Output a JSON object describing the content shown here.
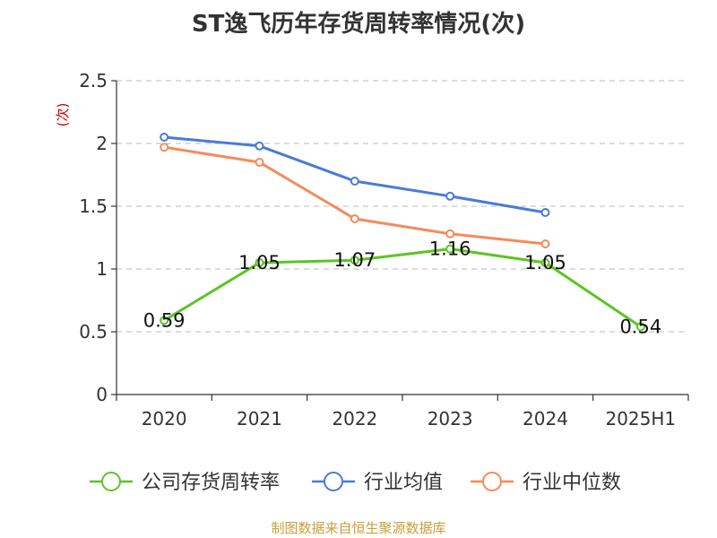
{
  "title": "ST逸飞历年存货周转率情况(次)",
  "source": "制图数据来自恒生聚源数据库",
  "colors": {
    "company": "#5cc424",
    "industry_avg": "#4a7bd6",
    "industry_median": "#f58a5a",
    "grid": "#c8c8c8",
    "axis": "#333333",
    "unit": "#cc0000",
    "source": "#c8a03c"
  },
  "chart_data": {
    "type": "line",
    "title": "ST逸飞历年存货周转率情况(次)",
    "ylabel": "(次)",
    "xlabel": "",
    "categories": [
      "2020",
      "2021",
      "2022",
      "2023",
      "2024",
      "2025H1"
    ],
    "ylim": [
      0,
      2.5
    ],
    "yticks": [
      "0",
      "0.5",
      "1",
      "1.5",
      "2",
      "2.5"
    ],
    "ytick_values": [
      0,
      0.5,
      1,
      1.5,
      2,
      2.5
    ],
    "grid": true,
    "legend_position": "bottom",
    "series": [
      {
        "name": "公司存货周转率",
        "key": "company",
        "values": [
          0.59,
          1.05,
          1.07,
          1.16,
          1.05,
          0.54
        ],
        "labels": [
          "0.59",
          "1.05",
          "1.07",
          "1.16",
          "1.05",
          "0.54"
        ]
      },
      {
        "name": "行业均值",
        "key": "industry_avg",
        "values": [
          2.05,
          1.98,
          1.7,
          1.58,
          1.45,
          null
        ]
      },
      {
        "name": "行业中位数",
        "key": "industry_median",
        "values": [
          1.97,
          1.85,
          1.4,
          1.28,
          1.2,
          null
        ]
      }
    ]
  }
}
